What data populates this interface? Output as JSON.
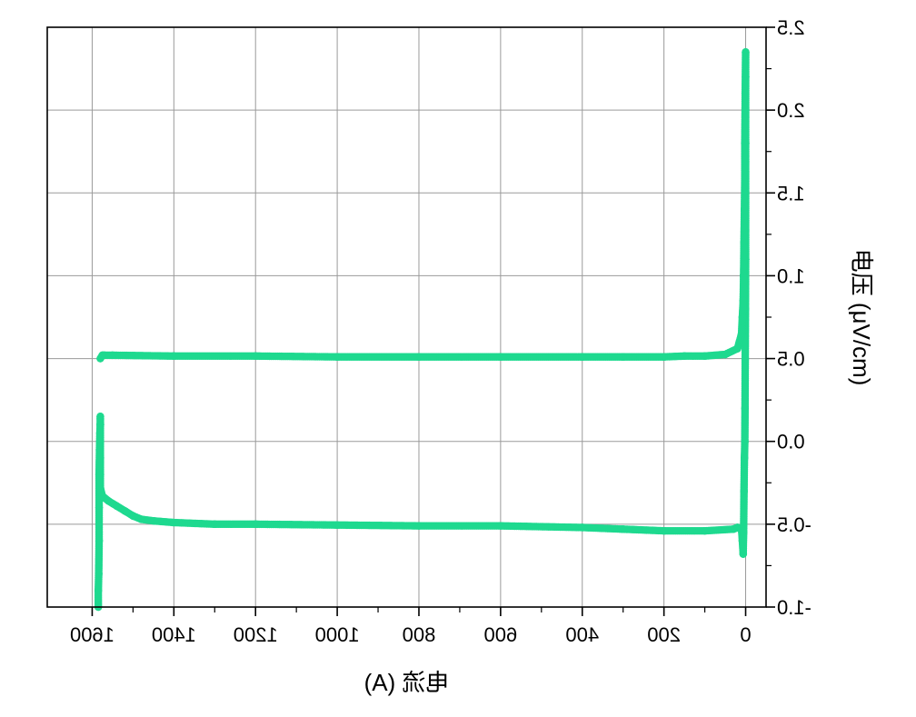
{
  "chart_data": {
    "type": "scatter",
    "mirrored": true,
    "xlabel": "电流 (A)",
    "ylabel": "电压 (μV/cm)",
    "xlim": [
      1710,
      -50
    ],
    "ylim": [
      -1.0,
      2.5
    ],
    "xticks": [
      1600,
      1400,
      1200,
      1000,
      800,
      600,
      400,
      200,
      0
    ],
    "yticks": [
      -1.0,
      -0.5,
      0.0,
      0.5,
      1.0,
      1.5,
      2.0,
      2.5
    ],
    "xtick_labels": [
      "1600",
      "1400",
      "1200",
      "1000",
      "800",
      "600",
      "400",
      "200",
      "0"
    ],
    "ytick_labels": [
      "-1.0",
      "-0.5",
      "0.0",
      "0.5",
      "1.0",
      "1.5",
      "2.0",
      "2.5"
    ],
    "grid": true,
    "colors": {
      "marker": "#1ed98f",
      "line": "#000000",
      "grid": "#9a9a9a"
    },
    "series": [
      {
        "x": [
          1585,
          1585,
          1584,
          1583,
          1583,
          1583,
          1582,
          1581,
          1580,
          1580,
          1580,
          1580,
          1580,
          1580,
          1580,
          1575,
          1560,
          1540,
          1520,
          1500,
          1480,
          1450,
          1400,
          1300,
          1200,
          1000,
          800,
          600,
          400,
          300,
          200,
          100,
          30,
          20,
          10,
          8,
          6,
          5,
          4,
          3,
          2,
          1.5,
          1,
          0.5,
          0,
          0,
          0,
          0,
          0,
          0,
          1,
          2,
          2,
          3,
          4,
          5,
          6,
          8,
          10,
          20,
          50,
          100,
          150,
          200,
          300,
          400,
          600,
          800,
          1000,
          1200,
          1400,
          1550,
          1570,
          1575,
          1580
        ],
        "y": [
          -1.0,
          -0.9,
          -0.8,
          -0.6,
          -0.4,
          -0.2,
          -0.05,
          0.05,
          0.1,
          0.15,
          0.1,
          0.0,
          -0.1,
          -0.2,
          -0.28,
          -0.33,
          -0.36,
          -0.39,
          -0.42,
          -0.45,
          -0.47,
          -0.48,
          -0.49,
          -0.5,
          -0.5,
          -0.505,
          -0.51,
          -0.51,
          -0.52,
          -0.53,
          -0.54,
          -0.54,
          -0.53,
          -0.52,
          -0.53,
          -0.6,
          -0.68,
          -0.55,
          -0.3,
          -0.1,
          0.0,
          0.2,
          0.5,
          0.8,
          1.1,
          1.5,
          1.8,
          2.0,
          2.2,
          2.35,
          2.1,
          1.8,
          1.6,
          1.4,
          1.2,
          1.0,
          0.85,
          0.75,
          0.65,
          0.56,
          0.525,
          0.515,
          0.515,
          0.51,
          0.51,
          0.51,
          0.51,
          0.51,
          0.51,
          0.515,
          0.515,
          0.52,
          0.52,
          0.52,
          0.5
        ]
      }
    ]
  }
}
